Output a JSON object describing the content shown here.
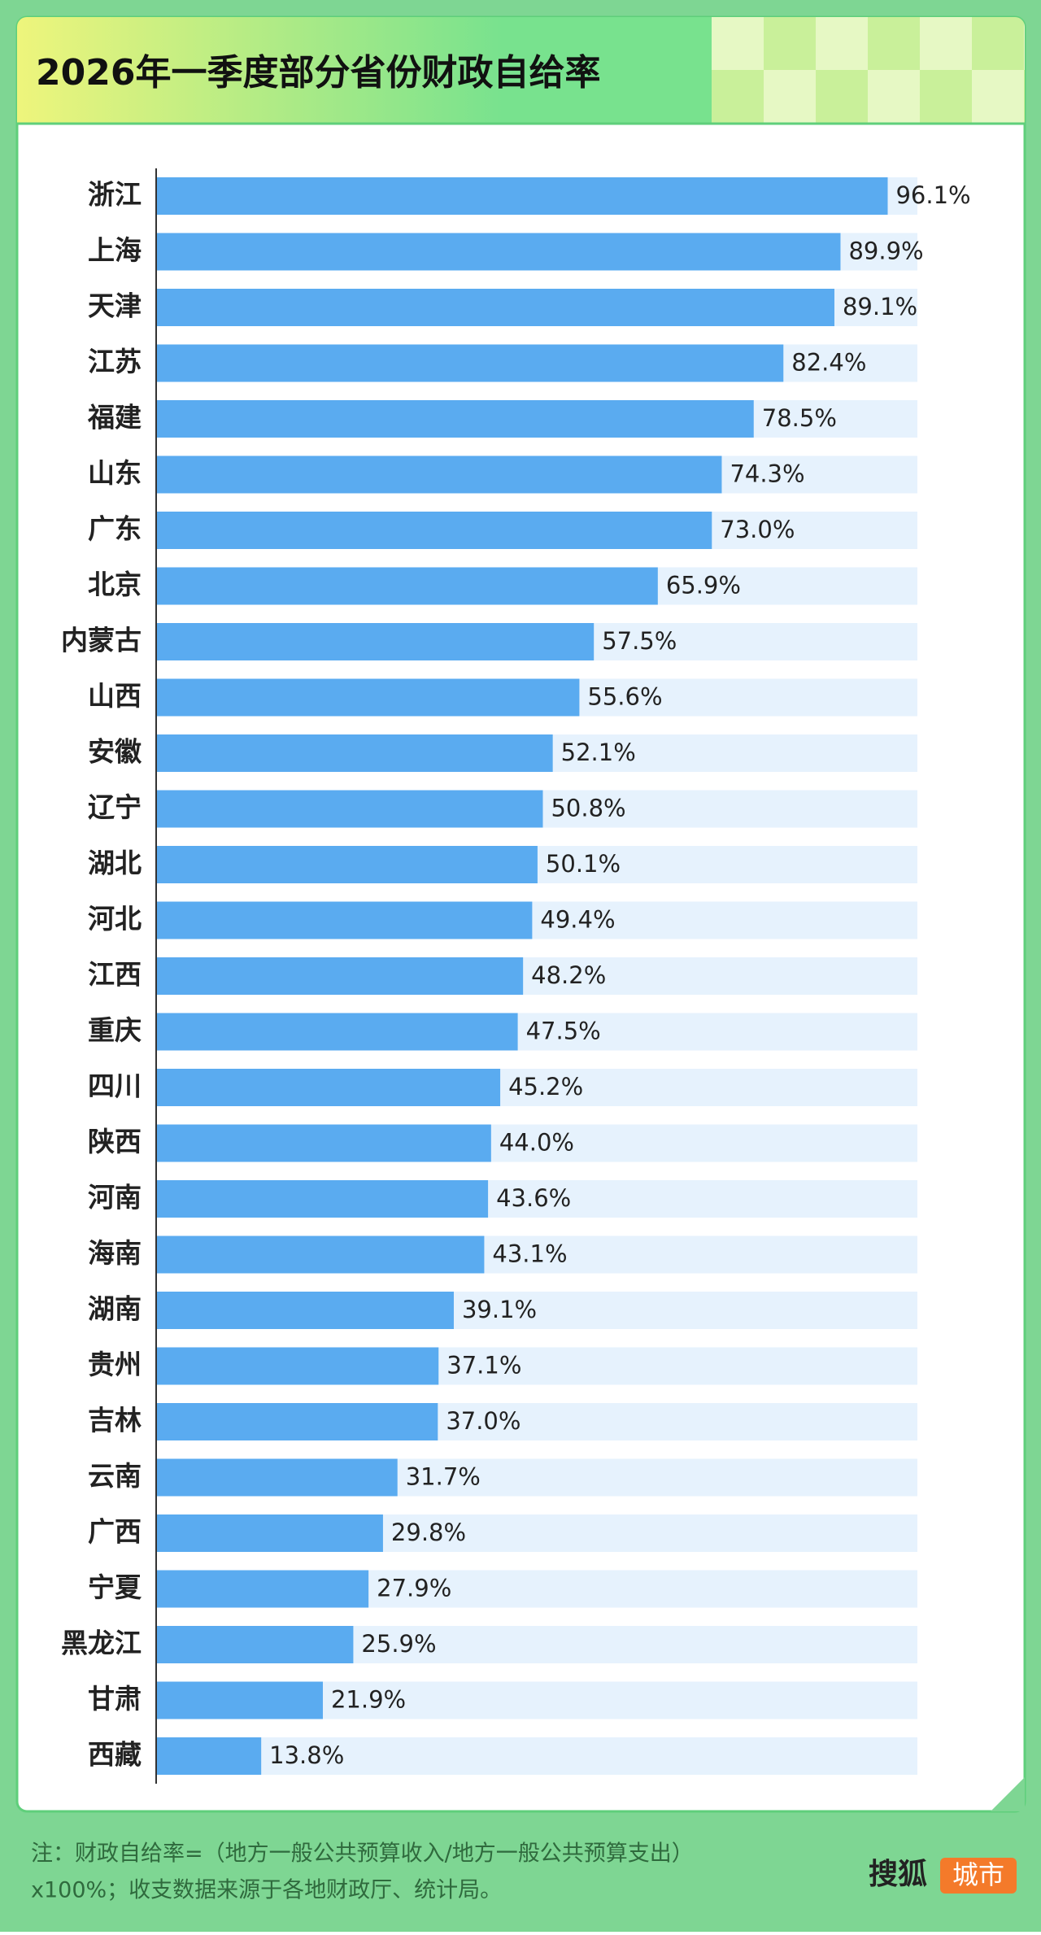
{
  "chart_data": {
    "type": "bar",
    "orientation": "horizontal",
    "title": "2026年一季度部分省份财政自给率",
    "categories": [
      "浙江",
      "上海",
      "天津",
      "江苏",
      "福建",
      "山东",
      "广东",
      "北京",
      "内蒙古",
      "山西",
      "安徽",
      "辽宁",
      "湖北",
      "河北",
      "江西",
      "重庆",
      "四川",
      "陕西",
      "河南",
      "海南",
      "湖南",
      "贵州",
      "吉林",
      "云南",
      "广西",
      "宁夏",
      "黑龙江",
      "甘肃",
      "西藏"
    ],
    "values": [
      96.1,
      89.9,
      89.1,
      82.4,
      78.5,
      74.3,
      73.0,
      65.9,
      57.5,
      55.6,
      52.1,
      50.8,
      50.1,
      49.4,
      48.2,
      47.5,
      45.2,
      44.0,
      43.6,
      43.1,
      39.1,
      37.1,
      37.0,
      31.7,
      29.8,
      27.9,
      25.9,
      21.9,
      13.8
    ],
    "value_labels": [
      "96.1%",
      "89.9%",
      "89.1%",
      "82.4%",
      "78.5%",
      "74.3%",
      "73.0%",
      "65.9%",
      "57.5%",
      "55.6%",
      "52.1%",
      "50.8%",
      "50.1%",
      "49.4%",
      "48.2%",
      "47.5%",
      "45.2%",
      "44.0%",
      "43.6%",
      "43.1%",
      "39.1%",
      "37.1%",
      "37.0%",
      "31.7%",
      "29.8%",
      "27.9%",
      "25.9%",
      "21.9%",
      "13.8%"
    ],
    "color": "#5aabf0",
    "track_color": "#e6f2fd",
    "xlim": [
      0,
      100
    ]
  },
  "footer": {
    "note": [
      "注：财政自给率=（地方一般公共预算收入/地方一般公共预算支出）",
      "x100%；收支数据来源于各地财政厅、统计局。"
    ],
    "brand": "搜狐",
    "brand_tag": "城市"
  }
}
